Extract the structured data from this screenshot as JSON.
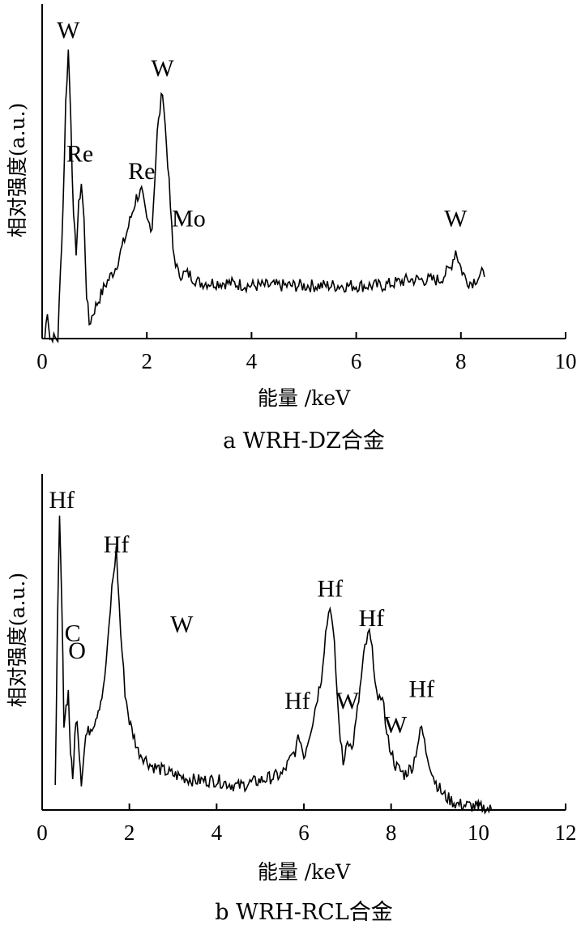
{
  "chart_data": [
    {
      "type": "line",
      "xlabel": "能量 /keV",
      "ylabel": "相对强度(a.u.)",
      "caption": "a  WRH-DZ合金",
      "xlim": [
        0,
        10
      ],
      "x_ticks": [
        "0",
        "2",
        "4",
        "6",
        "8",
        "10"
      ],
      "grid": false,
      "annotations": [
        {
          "text": "W",
          "x": 0.5,
          "y": 1.0
        },
        {
          "text": "Re",
          "x": 0.72,
          "y": 0.58
        },
        {
          "text": "Re",
          "x": 1.9,
          "y": 0.52
        },
        {
          "text": "W",
          "x": 2.3,
          "y": 0.87
        },
        {
          "text": "Mo",
          "x": 2.8,
          "y": 0.36
        },
        {
          "text": "W",
          "x": 7.9,
          "y": 0.36
        }
      ],
      "series": [
        {
          "x": [
            0.05,
            0.1,
            0.15,
            0.2,
            0.3,
            0.4,
            0.45,
            0.5,
            0.55,
            0.6,
            0.65,
            0.7,
            0.75,
            0.8,
            0.85,
            0.9,
            1.0,
            1.2,
            1.4,
            1.6,
            1.8,
            1.9,
            2.0,
            2.1,
            2.2,
            2.3,
            2.4,
            2.5,
            2.6,
            2.8,
            3.0,
            3.5,
            4.0,
            4.5,
            5.0,
            5.5,
            6.0,
            6.5,
            7.0,
            7.3,
            7.6,
            7.8,
            7.9,
            8.0,
            8.1,
            8.2,
            8.4,
            8.45
          ],
          "y": [
            0.0,
            0.1,
            0.0,
            0.0,
            0.0,
            0.45,
            0.8,
            0.98,
            0.75,
            0.4,
            0.3,
            0.45,
            0.53,
            0.4,
            0.15,
            0.05,
            0.1,
            0.18,
            0.24,
            0.35,
            0.48,
            0.5,
            0.4,
            0.38,
            0.7,
            0.85,
            0.6,
            0.3,
            0.22,
            0.22,
            0.19,
            0.19,
            0.18,
            0.18,
            0.18,
            0.18,
            0.18,
            0.18,
            0.2,
            0.2,
            0.2,
            0.24,
            0.3,
            0.24,
            0.2,
            0.19,
            0.22,
            0.21
          ]
        }
      ]
    },
    {
      "type": "line",
      "xlabel": "能量 /keV",
      "ylabel": "相对强度(a.u.)",
      "caption": "b  WRH-RCL合金",
      "xlim": [
        0,
        12
      ],
      "x_ticks": [
        "0",
        "2",
        "4",
        "6",
        "8",
        "10",
        "12"
      ],
      "grid": false,
      "annotations": [
        {
          "text": "Hf",
          "x": 0.45,
          "y": 1.0
        },
        {
          "text": "C",
          "x": 0.7,
          "y": 0.55
        },
        {
          "text": "O",
          "x": 0.8,
          "y": 0.49
        },
        {
          "text": "Hf",
          "x": 1.7,
          "y": 0.85
        },
        {
          "text": "W",
          "x": 3.2,
          "y": 0.58
        },
        {
          "text": "Hf",
          "x": 5.85,
          "y": 0.32
        },
        {
          "text": "Hf",
          "x": 6.6,
          "y": 0.7
        },
        {
          "text": "W",
          "x": 7.0,
          "y": 0.32
        },
        {
          "text": "Hf",
          "x": 7.55,
          "y": 0.6
        },
        {
          "text": "W",
          "x": 8.1,
          "y": 0.24
        },
        {
          "text": "Hf",
          "x": 8.7,
          "y": 0.36
        }
      ],
      "series": [
        {
          "x": [
            0.3,
            0.35,
            0.4,
            0.45,
            0.5,
            0.55,
            0.6,
            0.65,
            0.7,
            0.75,
            0.8,
            0.85,
            0.9,
            1.0,
            1.2,
            1.4,
            1.5,
            1.6,
            1.7,
            1.8,
            1.9,
            2.0,
            2.2,
            2.5,
            3.0,
            3.5,
            4.0,
            4.5,
            5.0,
            5.5,
            5.8,
            5.9,
            6.0,
            6.2,
            6.4,
            6.5,
            6.6,
            6.7,
            6.8,
            6.9,
            7.0,
            7.1,
            7.2,
            7.4,
            7.5,
            7.6,
            7.7,
            7.8,
            7.9,
            8.0,
            8.1,
            8.3,
            8.5,
            8.6,
            8.7,
            8.8,
            8.9,
            9.0,
            9.2,
            9.5,
            10.0,
            10.3
          ],
          "y": [
            0.1,
            0.6,
            0.98,
            0.7,
            0.3,
            0.35,
            0.4,
            0.2,
            0.1,
            0.25,
            0.32,
            0.2,
            0.1,
            0.25,
            0.3,
            0.4,
            0.55,
            0.75,
            0.88,
            0.6,
            0.4,
            0.3,
            0.2,
            0.15,
            0.12,
            0.1,
            0.1,
            0.08,
            0.1,
            0.12,
            0.2,
            0.25,
            0.18,
            0.3,
            0.45,
            0.6,
            0.7,
            0.55,
            0.3,
            0.15,
            0.25,
            0.2,
            0.3,
            0.55,
            0.6,
            0.5,
            0.35,
            0.4,
            0.25,
            0.2,
            0.15,
            0.12,
            0.15,
            0.22,
            0.28,
            0.2,
            0.15,
            0.1,
            0.05,
            0.02,
            0.01,
            0.0
          ]
        }
      ]
    }
  ]
}
